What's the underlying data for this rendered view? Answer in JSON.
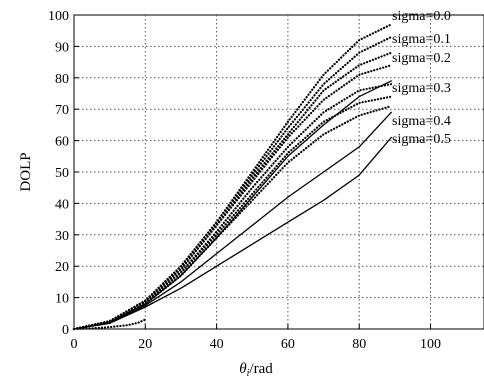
{
  "chart_data": {
    "type": "line",
    "xlabel": "θi/rad",
    "xlabel_main": "θ",
    "xlabel_sub": "i",
    "xlabel_rest": "/rad",
    "ylabel": "DOLP",
    "xlim": [
      0,
      115
    ],
    "ylim": [
      0,
      100
    ],
    "xticks": [
      0,
      20,
      40,
      60,
      80,
      100
    ],
    "yticks": [
      0,
      10,
      20,
      30,
      40,
      50,
      60,
      70,
      80,
      90,
      100
    ],
    "grid": true,
    "annotations": [
      "sigma=0.0",
      "sigma=0.1",
      "sigma=0.2",
      "sigma=0.3",
      "sigma=0.4",
      "sigma=0.5"
    ],
    "series": [
      {
        "style": "dotted",
        "x": [
          0,
          10,
          20,
          30,
          40,
          50,
          60,
          70,
          80,
          89
        ],
        "y": [
          0,
          2.5,
          9,
          20,
          34,
          50,
          66,
          81,
          92,
          97
        ]
      },
      {
        "style": "dotted",
        "x": [
          0,
          10,
          20,
          30,
          40,
          50,
          60,
          70,
          80,
          89
        ],
        "y": [
          0,
          2.5,
          9,
          20,
          34,
          49,
          64,
          78,
          88,
          93
        ]
      },
      {
        "style": "dotted",
        "x": [
          0,
          10,
          20,
          30,
          40,
          50,
          60,
          70,
          80,
          89
        ],
        "y": [
          0,
          2.4,
          9,
          19,
          33,
          48,
          62,
          76,
          84,
          88
        ]
      },
      {
        "style": "dotted",
        "x": [
          0,
          10,
          20,
          30,
          40,
          50,
          60,
          70,
          80,
          89
        ],
        "y": [
          0,
          2.4,
          9,
          19,
          33,
          47,
          61,
          73,
          81,
          84
        ]
      },
      {
        "style": "dotted",
        "x": [
          0,
          10,
          20,
          30,
          40,
          50,
          60,
          70,
          80,
          89
        ],
        "y": [
          0,
          2.3,
          8.5,
          18,
          31,
          45,
          58,
          69,
          76,
          78
        ]
      },
      {
        "style": "dotted",
        "x": [
          0,
          10,
          20,
          30,
          40,
          50,
          60,
          70,
          80,
          89
        ],
        "y": [
          0,
          2.3,
          8.5,
          18,
          30,
          43,
          56,
          66,
          72,
          74
        ]
      },
      {
        "style": "dotted",
        "x": [
          0,
          10,
          20,
          30,
          40,
          50,
          60,
          70,
          80,
          89
        ],
        "y": [
          0,
          2.2,
          8,
          17,
          29,
          41,
          53,
          62,
          68,
          71
        ]
      },
      {
        "style": "solid",
        "x": [
          0,
          10,
          20,
          30,
          40,
          50,
          60,
          70,
          80,
          89
        ],
        "y": [
          0,
          2.2,
          8,
          17,
          29,
          42,
          55,
          65,
          74,
          79
        ]
      },
      {
        "style": "solid",
        "x": [
          0,
          10,
          20,
          30,
          40,
          50,
          60,
          70,
          80,
          89
        ],
        "y": [
          0,
          2,
          7.5,
          15,
          24,
          33,
          42,
          50,
          58,
          69
        ]
      },
      {
        "style": "solid",
        "x": [
          0,
          10,
          20,
          30,
          40,
          50,
          60,
          70,
          80,
          89
        ],
        "y": [
          0,
          1.8,
          7,
          13,
          20,
          27,
          34,
          41,
          49,
          61
        ]
      },
      {
        "style": "dotted",
        "x": [
          0,
          5,
          10,
          15,
          18,
          20
        ],
        "y": [
          0,
          0.2,
          0.6,
          1.2,
          2,
          3
        ]
      }
    ]
  }
}
